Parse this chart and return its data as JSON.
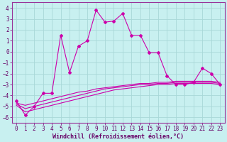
{
  "xlabel": "Windchill (Refroidissement éolien,°C)",
  "ylabel": "",
  "background_color": "#c8f0f0",
  "grid_color": "#a8d8d8",
  "line_color": "#cc00aa",
  "xlim": [
    -0.5,
    23.5
  ],
  "ylim": [
    -6.5,
    4.5
  ],
  "yticks": [
    -6,
    -5,
    -4,
    -3,
    -2,
    -1,
    0,
    1,
    2,
    3,
    4
  ],
  "xticks": [
    0,
    1,
    2,
    3,
    4,
    5,
    6,
    7,
    8,
    9,
    10,
    11,
    12,
    13,
    14,
    15,
    16,
    17,
    18,
    19,
    20,
    21,
    22,
    23
  ],
  "x": [
    0,
    1,
    2,
    3,
    4,
    5,
    6,
    7,
    8,
    9,
    10,
    11,
    12,
    13,
    14,
    15,
    16,
    17,
    18,
    19,
    20,
    21,
    22,
    23
  ],
  "line1": [
    -4.7,
    -4.9,
    -4.7,
    -4.5,
    -4.3,
    -4.1,
    -3.9,
    -3.7,
    -3.6,
    -3.4,
    -3.3,
    -3.2,
    -3.1,
    -3.0,
    -2.9,
    -2.9,
    -2.8,
    -2.8,
    -2.7,
    -2.7,
    -2.7,
    -2.7,
    -2.7,
    -2.8
  ],
  "line2": [
    -4.8,
    -5.2,
    -5.0,
    -4.8,
    -4.6,
    -4.4,
    -4.2,
    -4.0,
    -3.8,
    -3.6,
    -3.4,
    -3.3,
    -3.2,
    -3.1,
    -3.0,
    -3.0,
    -2.9,
    -2.9,
    -2.8,
    -2.8,
    -2.8,
    -2.8,
    -2.8,
    -2.9
  ],
  "line3": [
    -4.9,
    -5.5,
    -5.3,
    -5.1,
    -4.9,
    -4.7,
    -4.5,
    -4.3,
    -4.1,
    -3.9,
    -3.7,
    -3.5,
    -3.4,
    -3.3,
    -3.2,
    -3.1,
    -3.0,
    -3.0,
    -2.9,
    -2.9,
    -2.9,
    -2.9,
    -2.9,
    -3.0
  ],
  "line4": [
    -4.5,
    -5.8,
    -5.0,
    -3.8,
    -3.8,
    1.5,
    -1.9,
    0.5,
    1.0,
    3.8,
    2.7,
    2.8,
    3.5,
    1.5,
    1.5,
    -0.1,
    -0.1,
    -2.2,
    -3.0,
    -3.0,
    -2.8,
    -1.5,
    -2.0,
    -3.0
  ],
  "figsize": [
    3.2,
    2.0
  ],
  "dpi": 100,
  "tick_fontsize": 5.5,
  "label_fontsize": 6.0
}
